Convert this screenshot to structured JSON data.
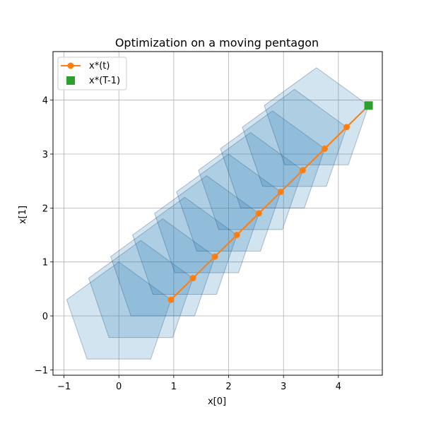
{
  "chart_data": {
    "type": "scatter",
    "title": "Optimization on a moving pentagon",
    "xlabel": "x[0]",
    "ylabel": "x[1]",
    "xlim": [
      -1.2,
      4.8
    ],
    "ylim": [
      -1.1,
      4.9
    ],
    "xticks": [
      -1,
      0,
      1,
      2,
      3,
      4
    ],
    "yticks": [
      -1,
      0,
      1,
      2,
      3,
      4
    ],
    "xtick_labels": [
      "−1",
      "0",
      "1",
      "2",
      "3",
      "4"
    ],
    "ytick_labels": [
      "−1",
      "0",
      "1",
      "2",
      "3",
      "4"
    ],
    "grid": true,
    "legend_position": "top-left",
    "pentagon_base": [
      [
        -0.95,
        0.3
      ],
      [
        0.0,
        1.0
      ],
      [
        0.95,
        0.3
      ],
      [
        0.58,
        -0.8
      ],
      [
        -0.58,
        -0.8
      ]
    ],
    "pentagon_offsets": [
      [
        0.0,
        0.0
      ],
      [
        0.4,
        0.4
      ],
      [
        0.8,
        0.8
      ],
      [
        1.2,
        1.2
      ],
      [
        1.6,
        1.6
      ],
      [
        2.0,
        2.0
      ],
      [
        2.4,
        2.4
      ],
      [
        2.8,
        2.8
      ],
      [
        3.2,
        3.2
      ],
      [
        3.6,
        3.6
      ]
    ],
    "pentagon_color": "#1f77b4",
    "series": [
      {
        "name": "x*(t)",
        "color": "#ff7f0e",
        "x": [
          0.95,
          1.35,
          1.75,
          2.15,
          2.55,
          2.95,
          3.35,
          3.75,
          4.15,
          4.55
        ],
        "y": [
          0.3,
          0.7,
          1.1,
          1.5,
          1.9,
          2.3,
          2.7,
          3.1,
          3.5,
          3.9
        ]
      },
      {
        "name": "x*(T-1)",
        "color": "#2ca02c",
        "x": [
          4.55
        ],
        "y": [
          3.9
        ]
      }
    ]
  }
}
